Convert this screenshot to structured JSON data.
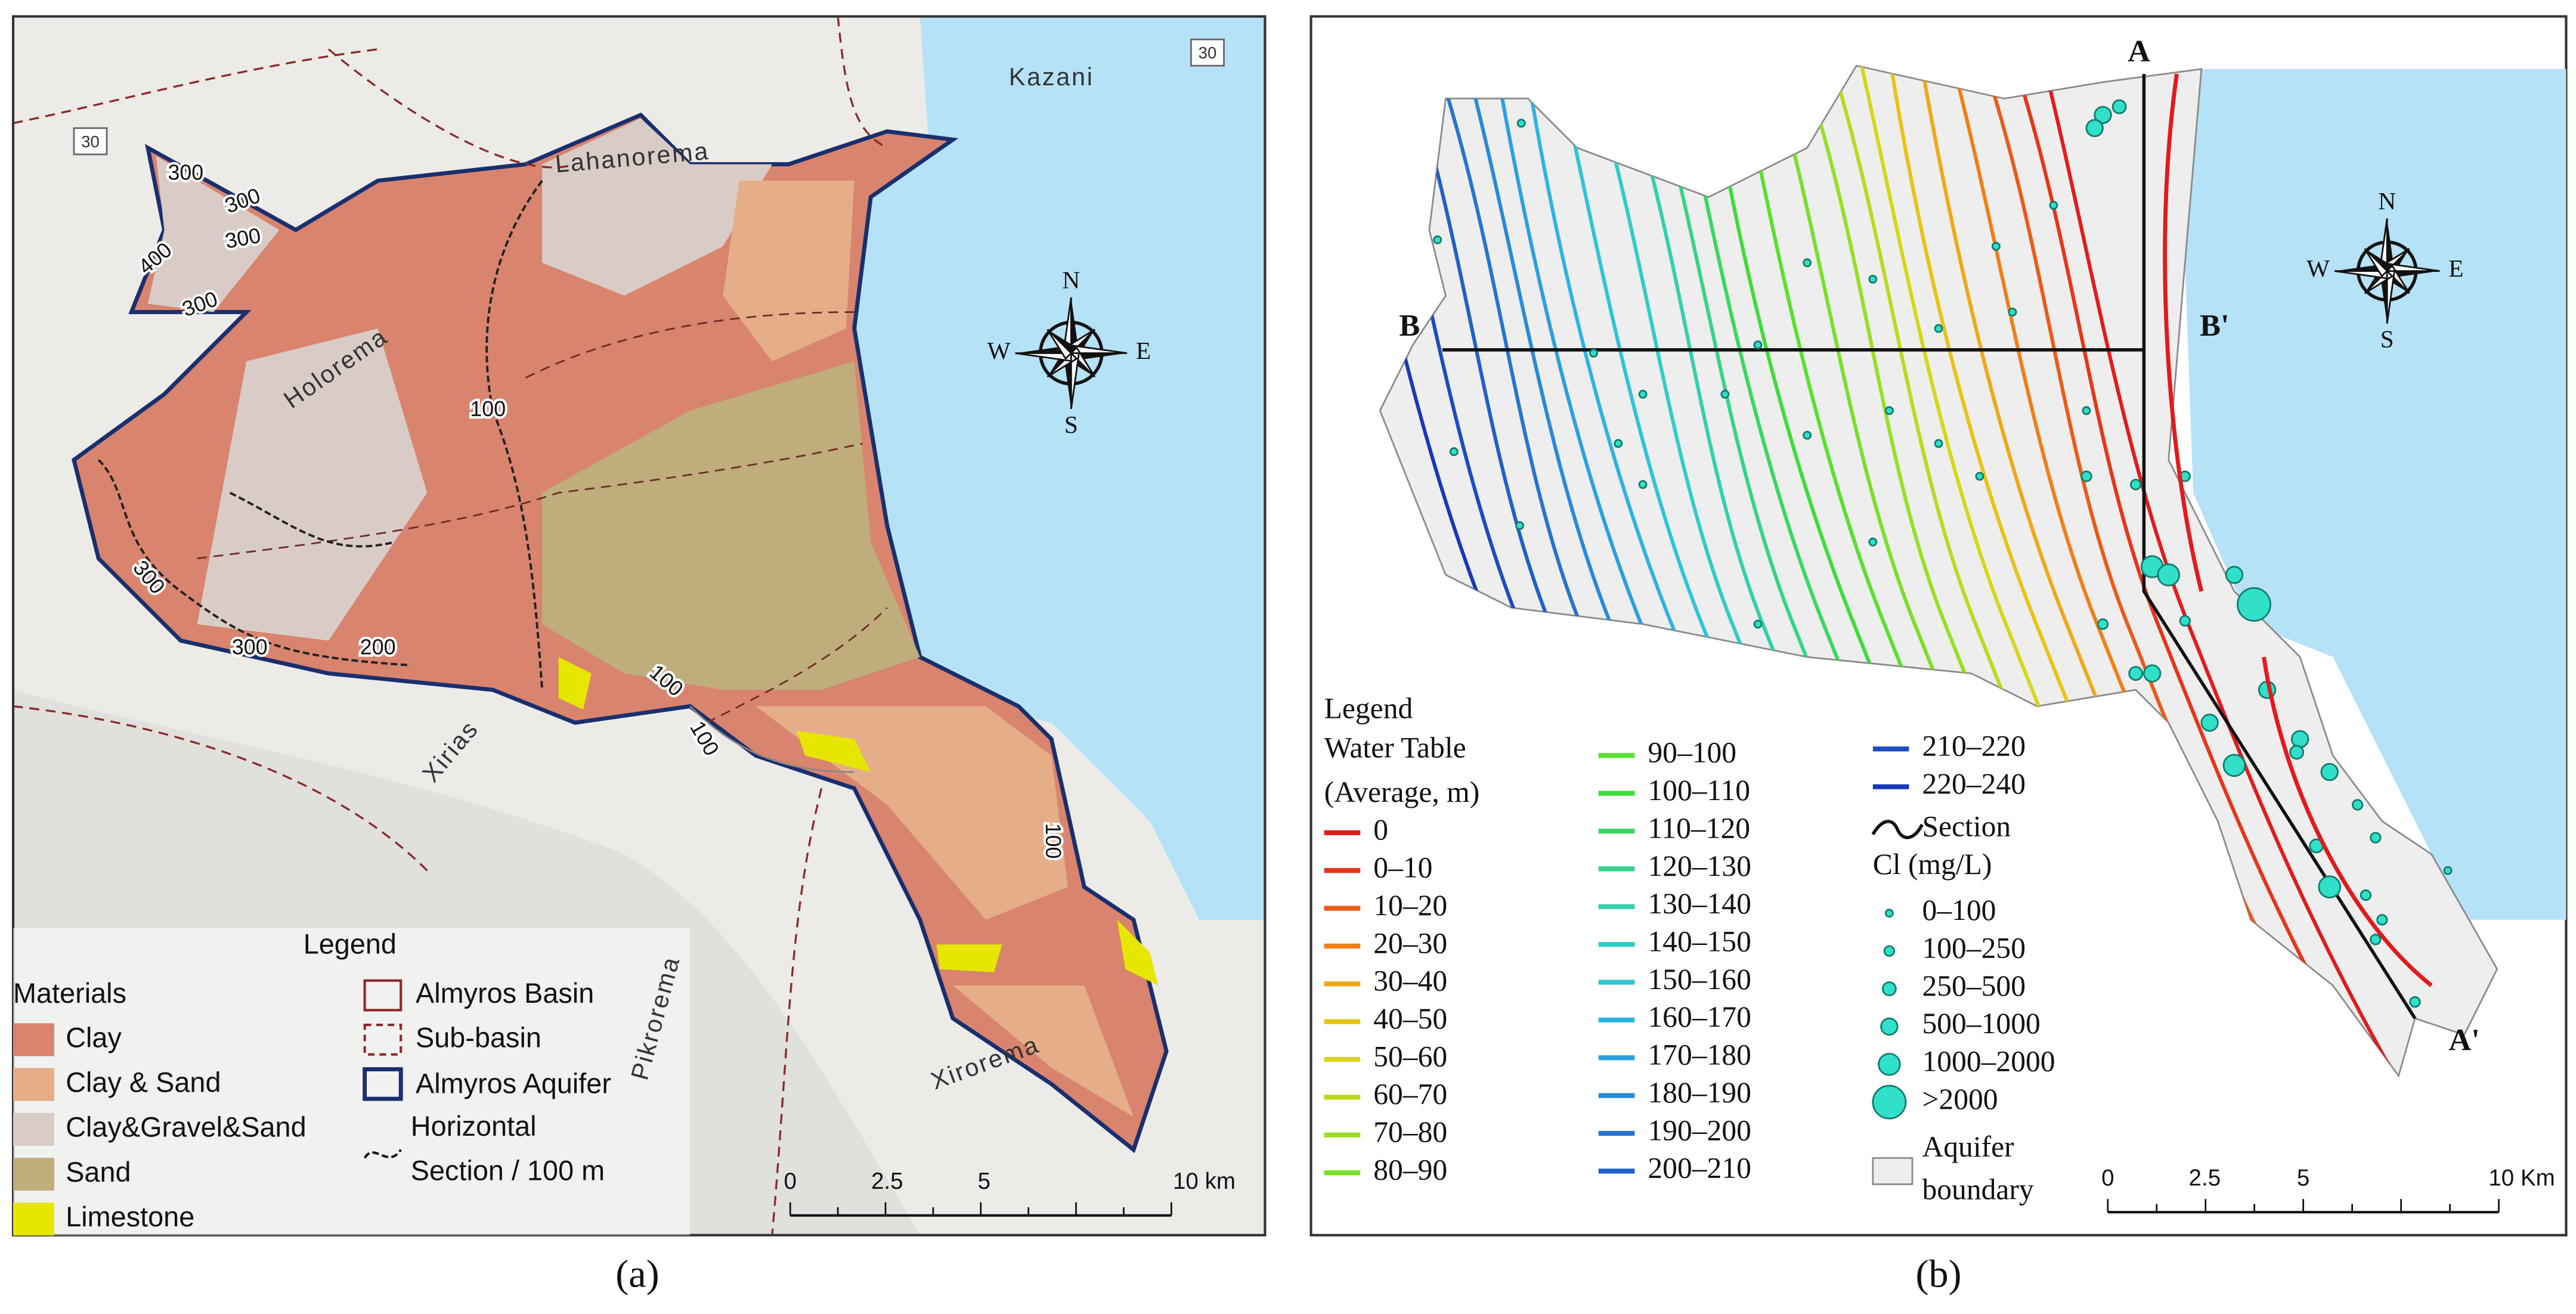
{
  "panel_a": {
    "caption": "(a)",
    "places": [
      "Kazani",
      "Lahanorema",
      "Holorema",
      "Xirias",
      "Pikrorema",
      "Xirorema"
    ],
    "roads": [
      "30",
      "30"
    ],
    "contours": [
      "300",
      "300",
      "300",
      "400",
      "300",
      "100",
      "300",
      "300",
      "200",
      "100",
      "100",
      "100"
    ],
    "compass": {
      "n": "N",
      "w": "W",
      "e": "E",
      "s": "S"
    },
    "legend": {
      "title": "Legend",
      "materials_title": "Materials",
      "materials": [
        {
          "label": "Clay",
          "color": "#d9846e"
        },
        {
          "label": "Clay & Sand",
          "color": "#e5ae88"
        },
        {
          "label": "Clay&Gravel&Sand",
          "color": "#d9ccc6"
        },
        {
          "label": "Sand",
          "color": "#bfae7c"
        },
        {
          "label": "Limestone",
          "color": "#e6e600"
        }
      ],
      "lines": [
        "Almyros Basin",
        "Sub-basin",
        "Almyros Aquifer",
        "Horizontal",
        "Section / 100 m"
      ]
    },
    "scale": [
      "0",
      "2.5",
      "5",
      "10 km"
    ]
  },
  "panel_b": {
    "caption": "(b)",
    "sections": [
      "A",
      "A'",
      "B",
      "B'"
    ],
    "compass": {
      "n": "N",
      "w": "W",
      "e": "E",
      "s": "S"
    },
    "legend": {
      "title": "Legend",
      "subtitle": [
        "Water Table",
        "(Average, m)"
      ],
      "classes": [
        {
          "label": "0",
          "color": "#e31a1c"
        },
        {
          "label": "0–10",
          "color": "#e8341a"
        },
        {
          "label": "10–20",
          "color": "#ec5a18"
        },
        {
          "label": "20–30",
          "color": "#f07f16"
        },
        {
          "label": "30–40",
          "color": "#f0a814"
        },
        {
          "label": "40–50",
          "color": "#e8c412"
        },
        {
          "label": "50–60",
          "color": "#d7d616"
        },
        {
          "label": "60–70",
          "color": "#b8dc1c"
        },
        {
          "label": "70–80",
          "color": "#98df22"
        },
        {
          "label": "80–90",
          "color": "#78e028"
        },
        {
          "label": "90–100",
          "color": "#58e02e"
        },
        {
          "label": "100–110",
          "color": "#3fdc3a"
        },
        {
          "label": "110–120",
          "color": "#38d860"
        },
        {
          "label": "120–130",
          "color": "#35d488"
        },
        {
          "label": "130–140",
          "color": "#33d0aa"
        },
        {
          "label": "140–150",
          "color": "#31ccc6"
        },
        {
          "label": "150–160",
          "color": "#2fc4d8"
        },
        {
          "label": "160–170",
          "color": "#2db4e0"
        },
        {
          "label": "170–180",
          "color": "#2ba0e0"
        },
        {
          "label": "180–190",
          "color": "#288ad8"
        },
        {
          "label": "190–200",
          "color": "#2574d0"
        },
        {
          "label": "200–210",
          "color": "#2060c8"
        },
        {
          "label": "210–220",
          "color": "#1c4cc0"
        },
        {
          "label": "220–240",
          "color": "#1838b8"
        }
      ],
      "section": "Section",
      "cl_title": "Cl (mg/L)",
      "cl_classes": [
        "0–100",
        "100–250",
        "250–500",
        "500–1000",
        "1000–2000",
        ">2000"
      ],
      "boundary": [
        "Aquifer",
        "boundary"
      ]
    },
    "scale": [
      "0",
      "2.5",
      "5",
      "10 Km"
    ]
  }
}
